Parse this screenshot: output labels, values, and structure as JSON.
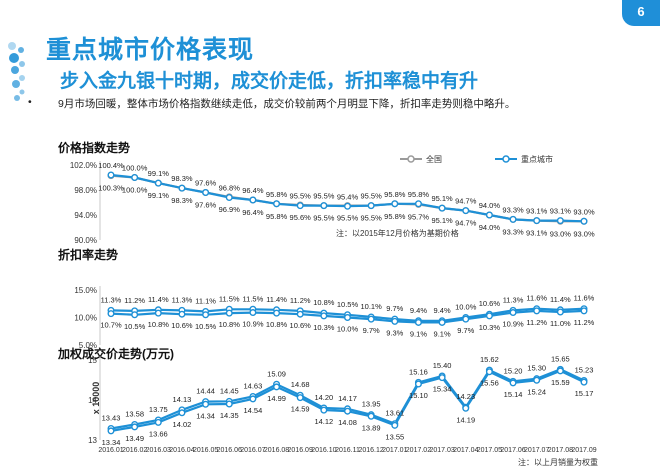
{
  "page": {
    "number": "6",
    "title": "重点城市价格表现",
    "subtitle": "步入金九银十时期，成交价走低，折扣率稳中有升",
    "bullet_marker": "•",
    "bullet_text": "9月市场回暖，整体市场价格指数继续走低，成交价较前两个月明显下降，折扣率走势则稳中略升。"
  },
  "colors": {
    "accent": "#1e90d6",
    "series_all": "#9a9a9a",
    "series_key": "#1e90d6"
  },
  "months": [
    "2016.01",
    "2016.02",
    "2016.03",
    "2016.04",
    "2016.05",
    "2016.06",
    "2016.07",
    "2016.08",
    "2016.09",
    "2016.10",
    "2016.11",
    "2016.12",
    "2017.01",
    "2017.02",
    "2017.03",
    "2017.04",
    "2017.05",
    "2017.06",
    "2017.07",
    "2017.08",
    "2017.09"
  ],
  "chart_data": [
    {
      "type": "line",
      "title": "价格指数走势",
      "note": "注：以2015年12月价格为基期价格",
      "y_ticks": [
        "102.0%",
        "98.0%",
        "94.0%",
        "90.0%"
      ],
      "ylim": [
        90,
        102
      ],
      "legend": "top-right",
      "series": [
        {
          "name": "全国",
          "values": [
            100.3,
            100.0,
            99.1,
            98.3,
            97.6,
            96.9,
            96.4,
            95.8,
            95.6,
            95.5,
            95.5,
            95.5,
            95.8,
            95.7,
            95.1,
            94.7,
            94.0,
            93.3,
            93.1,
            93.0,
            93.0
          ],
          "labels": [
            "100.3%",
            "100.0%",
            "99.1%",
            "98.3%",
            "97.6%",
            "96.9%",
            "96.4%",
            "95.8%",
            "95.6%",
            "95.5%",
            "95.5%",
            "95.5%",
            "95.8%",
            "95.7%",
            "95.1%",
            "94.7%",
            "94.0%",
            "93.3%",
            "93.1%",
            "93.0%",
            "93.0%"
          ]
        },
        {
          "name": "重点城市",
          "values": [
            100.4,
            100.0,
            99.1,
            98.3,
            97.6,
            96.8,
            96.4,
            95.8,
            95.5,
            95.5,
            95.4,
            95.5,
            95.8,
            95.8,
            95.1,
            94.7,
            94.0,
            93.3,
            93.1,
            93.1,
            93.0
          ],
          "labels": [
            "100.4%",
            "100.0%",
            "99.1%",
            "98.3%",
            "97.6%",
            "96.8%",
            "96.4%",
            "95.8%",
            "95.5%",
            "95.5%",
            "95.4%",
            "95.5%",
            "95.8%",
            "95.8%",
            "95.1%",
            "94.7%",
            "94.0%",
            "93.3%",
            "93.1%",
            "93.1%",
            "93.0%"
          ]
        }
      ]
    },
    {
      "type": "line",
      "title": "折扣率走势",
      "y_ticks": [
        "15.0%",
        "10.0%",
        "5.0%"
      ],
      "ylim": [
        5,
        15
      ],
      "series": [
        {
          "values": [
            11.3,
            11.2,
            11.4,
            11.3,
            11.1,
            11.5,
            11.5,
            11.4,
            11.2,
            10.8,
            10.5,
            10.1,
            9.7,
            9.4,
            9.4,
            10.0,
            10.6,
            11.3,
            11.6,
            11.4,
            11.6
          ],
          "labels": [
            "11.3%",
            "11.2%",
            "11.4%",
            "11.3%",
            "11.1%",
            "11.5%",
            "11.5%",
            "11.4%",
            "11.2%",
            "10.8%",
            "10.5%",
            "10.1%",
            "9.7%",
            "9.4%",
            "9.4%",
            "10.0%",
            "10.6%",
            "11.3%",
            "11.6%",
            "11.4%",
            "11.6%"
          ]
        },
        {
          "values": [
            10.7,
            10.5,
            10.8,
            10.6,
            10.5,
            10.8,
            10.9,
            10.8,
            10.6,
            10.3,
            10.0,
            9.7,
            9.3,
            9.1,
            9.1,
            9.7,
            10.3,
            10.9,
            11.2,
            11.0,
            11.2
          ],
          "labels": [
            "10.7%",
            "10.5%",
            "10.8%",
            "10.6%",
            "10.5%",
            "10.8%",
            "10.9%",
            "10.8%",
            "10.6%",
            "10.3%",
            "10.0%",
            "9.7%",
            "9.3%",
            "9.1%",
            "9.1%",
            "9.7%",
            "10.3%",
            "10.9%",
            "11.2%",
            "11.0%",
            "11.2%"
          ]
        }
      ]
    },
    {
      "type": "line",
      "title": "加权成交价走势(万元)",
      "ylabel": "x 10000",
      "y_ticks": [
        "15",
        "14",
        "13"
      ],
      "ylim": [
        13,
        16
      ],
      "note": "注：以上月销量为权重",
      "series": [
        {
          "values": [
            13.43,
            13.58,
            13.75,
            14.13,
            14.44,
            14.45,
            14.63,
            15.09,
            14.68,
            14.2,
            14.17,
            13.95,
            13.61,
            15.16,
            15.4,
            14.23,
            15.62,
            15.2,
            15.3,
            15.65,
            15.23
          ],
          "labels": [
            "13.43",
            "13.58",
            "13.75",
            "14.13",
            "14.44",
            "14.45",
            "14.63",
            "15.09",
            "14.68",
            "14.20",
            "14.17",
            "13.95",
            "13.61",
            "15.16",
            "15.40",
            "14.23",
            "15.62",
            "15.20",
            "15.30",
            "15.65",
            "15.23"
          ]
        },
        {
          "values": [
            13.34,
            13.49,
            13.66,
            14.02,
            14.34,
            14.35,
            14.54,
            14.99,
            14.59,
            14.12,
            14.08,
            13.89,
            13.55,
            15.1,
            15.34,
            14.19,
            15.56,
            15.14,
            15.24,
            15.59,
            15.17
          ],
          "labels": [
            "13.34",
            "13.49",
            "13.66",
            "14.02",
            "14.34",
            "14.35",
            "14.54",
            "14.99",
            "14.59",
            "14.12",
            "14.08",
            "13.89",
            "13.55",
            "15.10",
            "15.34",
            "14.19",
            "15.56",
            "15.14",
            "15.24",
            "15.59",
            "15.17"
          ]
        }
      ]
    }
  ]
}
